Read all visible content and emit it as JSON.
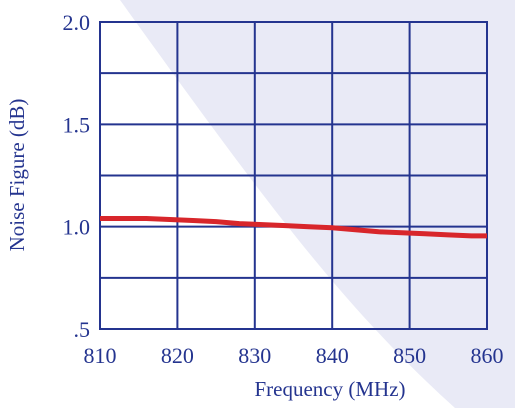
{
  "chart_data": {
    "type": "line",
    "title": "",
    "xlabel": "Frequency (MHz)",
    "ylabel": "Noise Figure (dB)",
    "xlim": [
      810,
      860
    ],
    "ylim": [
      0.5,
      2.0
    ],
    "xticks": [
      810,
      820,
      830,
      840,
      850,
      860
    ],
    "yticks": [
      0.5,
      1.0,
      1.5,
      2.0
    ],
    "xtick_labels": [
      "810",
      "820",
      "830",
      "840",
      "850",
      "860"
    ],
    "ytick_labels": [
      ".5",
      "1.0",
      "1.5",
      "2.0"
    ],
    "grid": true,
    "colors": {
      "text": "#24348f",
      "grid": "#24348f",
      "line": "#d8262b",
      "backdrop": "#e9eaf6"
    },
    "series": [
      {
        "x": [
          810,
          813,
          816,
          819,
          822,
          825,
          828,
          831,
          834,
          837,
          840,
          843,
          846,
          849,
          852,
          855,
          858,
          860
        ],
        "y": [
          1.04,
          1.04,
          1.04,
          1.035,
          1.03,
          1.025,
          1.015,
          1.01,
          1.005,
          1.0,
          0.995,
          0.985,
          0.975,
          0.97,
          0.965,
          0.96,
          0.955,
          0.955
        ]
      }
    ]
  }
}
